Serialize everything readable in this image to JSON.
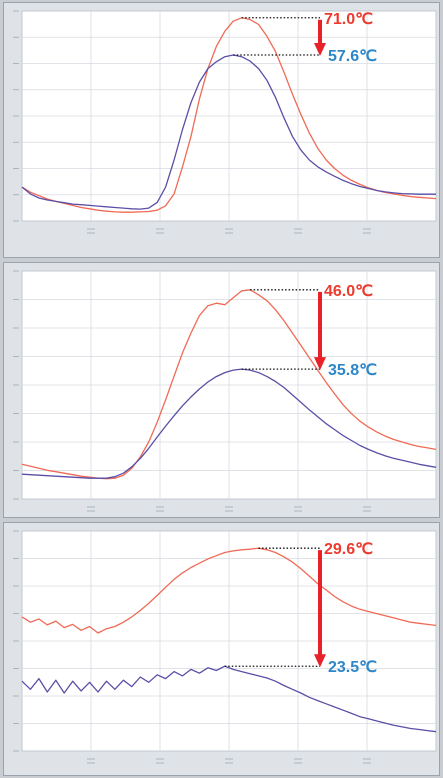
{
  "colors": {
    "hot": "#ec3b2e",
    "cool": "#2e86c8",
    "line_red": "#f06a55",
    "line_blue": "#5a4fa6",
    "arrow": "#e8222a",
    "grid": "#d6dbe0",
    "plot_bg": "#ffffff",
    "panel_bg": "#dfe3e8"
  },
  "chart_data": [
    {
      "type": "line",
      "grid": true,
      "series": [
        {
          "color": "#f06a55",
          "values": [
            300,
            285,
            275,
            265,
            258,
            252,
            246,
            240,
            236,
            232,
            229,
            227,
            226,
            226,
            227,
            228,
            232,
            245,
            280,
            360,
            450,
            560,
            650,
            715,
            760,
            790,
            800,
            795,
            780,
            745,
            700,
            640,
            575,
            515,
            460,
            415,
            380,
            355,
            335,
            320,
            308,
            298,
            290,
            284,
            280,
            276,
            272,
            270,
            268,
            266
          ]
        },
        {
          "color": "#5a4fa6",
          "values": [
            300,
            280,
            268,
            262,
            258,
            254,
            250,
            248,
            246,
            244,
            242,
            240,
            238,
            236,
            235,
            238,
            255,
            300,
            380,
            470,
            550,
            610,
            650,
            670,
            685,
            690,
            685,
            672,
            650,
            615,
            565,
            505,
            450,
            410,
            380,
            360,
            345,
            332,
            320,
            310,
            302,
            296,
            290,
            286,
            283,
            281,
            280,
            279,
            279,
            279
          ]
        }
      ],
      "annotations": {
        "high": "71.0℃",
        "low": "57.6℃"
      }
    },
    {
      "type": "line",
      "grid": true,
      "series": [
        {
          "color": "#f06a55",
          "values": [
            300,
            296,
            292,
            288,
            285,
            282,
            279,
            276,
            274,
            272,
            271,
            272,
            278,
            292,
            315,
            345,
            385,
            430,
            478,
            525,
            565,
            600,
            620,
            625,
            622,
            636,
            650,
            652,
            642,
            630,
            612,
            590,
            565,
            540,
            515,
            490,
            465,
            442,
            420,
            402,
            387,
            375,
            365,
            357,
            350,
            345,
            340,
            336,
            333,
            330
          ]
        },
        {
          "color": "#5a4fa6",
          "values": [
            280,
            279,
            278,
            277,
            276,
            275,
            274,
            273,
            272,
            272,
            272,
            275,
            282,
            295,
            312,
            332,
            355,
            377,
            398,
            418,
            436,
            452,
            466,
            477,
            485,
            490,
            492,
            490,
            485,
            477,
            467,
            455,
            440,
            425,
            410,
            396,
            382,
            370,
            358,
            348,
            338,
            330,
            323,
            317,
            312,
            308,
            304,
            300,
            297,
            294
          ]
        }
      ],
      "annotations": {
        "high": "46.0℃",
        "low": "35.8℃"
      }
    },
    {
      "type": "line",
      "grid": true,
      "series": [
        {
          "color": "#f06a55",
          "values": [
            480,
            470,
            476,
            465,
            472,
            460,
            466,
            455,
            462,
            450,
            458,
            462,
            470,
            480,
            492,
            505,
            520,
            535,
            550,
            562,
            572,
            580,
            588,
            594,
            600,
            603,
            605,
            606,
            608,
            605,
            600,
            592,
            582,
            570,
            556,
            542,
            530,
            518,
            508,
            500,
            494,
            490,
            486,
            482,
            478,
            474,
            470,
            468,
            466,
            464
          ]
        },
        {
          "color": "#5a4fa6",
          "values": [
            360,
            345,
            365,
            340,
            362,
            338,
            360,
            342,
            358,
            340,
            360,
            345,
            362,
            350,
            368,
            358,
            372,
            365,
            378,
            370,
            382,
            375,
            385,
            380,
            388,
            382,
            378,
            374,
            370,
            366,
            360,
            352,
            345,
            338,
            330,
            324,
            318,
            312,
            306,
            300,
            294,
            290,
            286,
            282,
            278,
            275,
            272,
            270,
            268,
            266
          ]
        }
      ],
      "annotations": {
        "high": "29.6℃",
        "low": "23.5℃"
      }
    }
  ]
}
